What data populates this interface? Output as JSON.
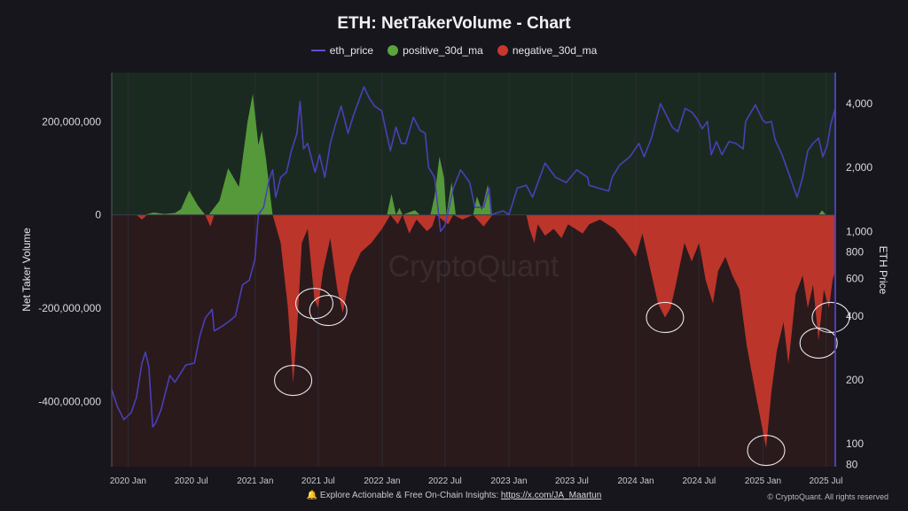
{
  "chart_data": {
    "type": "area",
    "title": "ETH: NetTakerVolume - Chart",
    "ylabel_left": "Net Taker Volume",
    "ylabel_right": "ETH Price",
    "watermark": "CryptoQuant",
    "x_ticks": [
      "2020 Jan",
      "2020 Jul",
      "2021 Jan",
      "2021 Jul",
      "2022 Jan",
      "2022 Jul",
      "2023 Jan",
      "2023 Jul",
      "2024 Jan",
      "2024 Jul",
      "2025 Jan",
      "2025 Jul"
    ],
    "x_range": [
      "2019-11-15",
      "2025-07-28"
    ],
    "left_axis": {
      "ylim": [
        -540000000,
        305000000
      ],
      "ticks": [
        200000000,
        0,
        -200000000,
        -400000000
      ],
      "tick_labels": [
        "200,000,000",
        "0",
        "-200,000,000",
        "-400,000,000"
      ]
    },
    "right_axis": {
      "scale": "log",
      "ylim": [
        78,
        5600
      ],
      "ticks": [
        4000,
        2000,
        1000,
        800,
        600,
        400,
        200,
        100,
        80
      ],
      "tick_labels": [
        "4,000",
        "2,000",
        "1,000",
        "800",
        "600",
        "400",
        "200",
        "100",
        "80"
      ]
    },
    "colors": {
      "eth_price": "#4a3fb8",
      "positive": "#5aa33d",
      "negative": "#c8372d",
      "bg_positive": "#1b2a20",
      "bg_negative": "#2a1a1c"
    },
    "series": [
      {
        "name": "positive_30d_ma",
        "points": [
          [
            "2019-11-15",
            0
          ],
          [
            "2020-02-15",
            0
          ],
          [
            "2020-03-15",
            5000000
          ],
          [
            "2020-04-15",
            2000000
          ],
          [
            "2020-05-15",
            4000000
          ],
          [
            "2020-06-01",
            12000000
          ],
          [
            "2020-06-25",
            52000000
          ],
          [
            "2020-07-20",
            20000000
          ],
          [
            "2020-08-10",
            0
          ],
          [
            "2020-08-20",
            0
          ],
          [
            "2020-09-20",
            30000000
          ],
          [
            "2020-10-15",
            100000000
          ],
          [
            "2020-11-15",
            60000000
          ],
          [
            "2020-12-10",
            200000000
          ],
          [
            "2020-12-25",
            260000000
          ],
          [
            "2021-01-10",
            150000000
          ],
          [
            "2021-01-20",
            180000000
          ],
          [
            "2021-02-01",
            120000000
          ],
          [
            "2021-02-15",
            30000000
          ],
          [
            "2021-02-20",
            0
          ],
          [
            "2022-01-15",
            0
          ],
          [
            "2022-01-28",
            45000000
          ],
          [
            "2022-02-10",
            0
          ],
          [
            "2022-02-20",
            15000000
          ],
          [
            "2022-03-01",
            0
          ],
          [
            "2022-04-05",
            10000000
          ],
          [
            "2022-04-20",
            0
          ],
          [
            "2022-05-20",
            0
          ],
          [
            "2022-06-01",
            40000000
          ],
          [
            "2022-06-15",
            125000000
          ],
          [
            "2022-06-28",
            80000000
          ],
          [
            "2022-07-05",
            0
          ],
          [
            "2022-07-20",
            70000000
          ],
          [
            "2022-08-01",
            0
          ],
          [
            "2022-09-20",
            0
          ],
          [
            "2022-10-01",
            40000000
          ],
          [
            "2022-10-15",
            10000000
          ],
          [
            "2022-11-01",
            65000000
          ],
          [
            "2022-11-10",
            0
          ],
          [
            "2025-06-10",
            0
          ],
          [
            "2025-06-20",
            10000000
          ],
          [
            "2025-07-01",
            0
          ],
          [
            "2025-07-28",
            0
          ]
        ]
      },
      {
        "name": "negative_30d_ma",
        "points": [
          [
            "2019-11-15",
            0
          ],
          [
            "2020-01-25",
            0
          ],
          [
            "2020-02-10",
            -10000000
          ],
          [
            "2020-02-25",
            0
          ],
          [
            "2020-08-10",
            0
          ],
          [
            "2020-08-25",
            -25000000
          ],
          [
            "2020-09-05",
            0
          ],
          [
            "2021-02-20",
            0
          ],
          [
            "2021-03-15",
            -60000000
          ],
          [
            "2021-04-05",
            -200000000
          ],
          [
            "2021-04-20",
            -360000000
          ],
          [
            "2021-05-01",
            -250000000
          ],
          [
            "2021-05-15",
            -60000000
          ],
          [
            "2021-06-01",
            -30000000
          ],
          [
            "2021-06-20",
            -180000000
          ],
          [
            "2021-07-01",
            -200000000
          ],
          [
            "2021-07-15",
            -120000000
          ],
          [
            "2021-08-05",
            -50000000
          ],
          [
            "2021-08-25",
            -160000000
          ],
          [
            "2021-09-10",
            -210000000
          ],
          [
            "2021-10-01",
            -130000000
          ],
          [
            "2021-11-01",
            -80000000
          ],
          [
            "2021-12-01",
            -60000000
          ],
          [
            "2022-01-01",
            -30000000
          ],
          [
            "2022-01-25",
            0
          ],
          [
            "2022-02-15",
            -20000000
          ],
          [
            "2022-03-01",
            0
          ],
          [
            "2022-03-20",
            -40000000
          ],
          [
            "2022-04-10",
            -10000000
          ],
          [
            "2022-05-10",
            -35000000
          ],
          [
            "2022-05-25",
            -25000000
          ],
          [
            "2022-06-05",
            0
          ],
          [
            "2022-07-10",
            -20000000
          ],
          [
            "2022-07-25",
            0
          ],
          [
            "2022-08-20",
            -10000000
          ],
          [
            "2022-09-20",
            0
          ],
          [
            "2022-10-20",
            -25000000
          ],
          [
            "2022-11-15",
            0
          ],
          [
            "2023-02-20",
            0
          ],
          [
            "2023-03-01",
            -30000000
          ],
          [
            "2023-03-15",
            -60000000
          ],
          [
            "2023-03-25",
            -20000000
          ],
          [
            "2023-04-15",
            -45000000
          ],
          [
            "2023-05-10",
            -30000000
          ],
          [
            "2023-06-01",
            -50000000
          ],
          [
            "2023-06-20",
            -20000000
          ],
          [
            "2023-08-01",
            -40000000
          ],
          [
            "2023-08-20",
            -20000000
          ],
          [
            "2023-09-20",
            -10000000
          ],
          [
            "2023-11-01",
            -30000000
          ],
          [
            "2023-12-05",
            -60000000
          ],
          [
            "2024-01-01",
            -90000000
          ],
          [
            "2024-01-20",
            -40000000
          ],
          [
            "2024-02-10",
            -110000000
          ],
          [
            "2024-03-05",
            -190000000
          ],
          [
            "2024-03-25",
            -220000000
          ],
          [
            "2024-04-10",
            -200000000
          ],
          [
            "2024-04-25",
            -150000000
          ],
          [
            "2024-05-20",
            -60000000
          ],
          [
            "2024-06-10",
            -100000000
          ],
          [
            "2024-07-01",
            -60000000
          ],
          [
            "2024-07-20",
            -140000000
          ],
          [
            "2024-08-10",
            -190000000
          ],
          [
            "2024-08-25",
            -120000000
          ],
          [
            "2024-09-15",
            -90000000
          ],
          [
            "2024-10-05",
            -130000000
          ],
          [
            "2024-10-25",
            -160000000
          ],
          [
            "2024-11-15",
            -280000000
          ],
          [
            "2024-12-15",
            -400000000
          ],
          [
            "2025-01-10",
            -500000000
          ],
          [
            "2025-01-25",
            -380000000
          ],
          [
            "2025-02-10",
            -290000000
          ],
          [
            "2025-03-01",
            -230000000
          ],
          [
            "2025-03-15",
            -320000000
          ],
          [
            "2025-03-25",
            -250000000
          ],
          [
            "2025-04-05",
            -170000000
          ],
          [
            "2025-04-25",
            -130000000
          ],
          [
            "2025-05-10",
            -200000000
          ],
          [
            "2025-05-25",
            -150000000
          ],
          [
            "2025-06-10",
            -270000000
          ],
          [
            "2025-06-25",
            -160000000
          ],
          [
            "2025-07-10",
            -200000000
          ],
          [
            "2025-07-20",
            -140000000
          ],
          [
            "2025-07-28",
            -120000000
          ]
        ]
      },
      {
        "name": "eth_price",
        "axis": "right",
        "points": [
          [
            "2019-11-15",
            180
          ],
          [
            "2019-12-01",
            150
          ],
          [
            "2019-12-20",
            130
          ],
          [
            "2020-01-10",
            140
          ],
          [
            "2020-01-25",
            165
          ],
          [
            "2020-02-10",
            240
          ],
          [
            "2020-02-20",
            270
          ],
          [
            "2020-03-01",
            230
          ],
          [
            "2020-03-12",
            120
          ],
          [
            "2020-03-20",
            125
          ],
          [
            "2020-04-05",
            145
          ],
          [
            "2020-04-30",
            210
          ],
          [
            "2020-05-15",
            195
          ],
          [
            "2020-06-15",
            235
          ],
          [
            "2020-07-10",
            240
          ],
          [
            "2020-07-25",
            320
          ],
          [
            "2020-08-10",
            390
          ],
          [
            "2020-08-30",
            430
          ],
          [
            "2020-09-05",
            340
          ],
          [
            "2020-09-30",
            360
          ],
          [
            "2020-10-20",
            380
          ],
          [
            "2020-11-05",
            400
          ],
          [
            "2020-11-25",
            560
          ],
          [
            "2020-12-15",
            590
          ],
          [
            "2020-12-31",
            740
          ],
          [
            "2021-01-10",
            1200
          ],
          [
            "2021-01-25",
            1300
          ],
          [
            "2021-02-10",
            1750
          ],
          [
            "2021-02-20",
            1950
          ],
          [
            "2021-03-01",
            1450
          ],
          [
            "2021-03-15",
            1800
          ],
          [
            "2021-04-01",
            1900
          ],
          [
            "2021-04-15",
            2400
          ],
          [
            "2021-05-01",
            2900
          ],
          [
            "2021-05-10",
            4100
          ],
          [
            "2021-05-20",
            2450
          ],
          [
            "2021-06-01",
            2600
          ],
          [
            "2021-06-22",
            1900
          ],
          [
            "2021-07-05",
            2300
          ],
          [
            "2021-07-20",
            1800
          ],
          [
            "2021-08-05",
            2600
          ],
          [
            "2021-08-20",
            3200
          ],
          [
            "2021-09-05",
            3900
          ],
          [
            "2021-09-25",
            2900
          ],
          [
            "2021-10-10",
            3500
          ],
          [
            "2021-10-30",
            4300
          ],
          [
            "2021-11-10",
            4800
          ],
          [
            "2021-11-25",
            4250
          ],
          [
            "2021-12-10",
            3900
          ],
          [
            "2021-12-31",
            3700
          ],
          [
            "2022-01-10",
            3100
          ],
          [
            "2022-01-25",
            2400
          ],
          [
            "2022-02-10",
            3100
          ],
          [
            "2022-02-25",
            2600
          ],
          [
            "2022-03-10",
            2600
          ],
          [
            "2022-04-01",
            3450
          ],
          [
            "2022-04-20",
            3000
          ],
          [
            "2022-05-05",
            2900
          ],
          [
            "2022-05-15",
            2000
          ],
          [
            "2022-06-01",
            1800
          ],
          [
            "2022-06-18",
            1000
          ],
          [
            "2022-07-01",
            1070
          ],
          [
            "2022-07-25",
            1600
          ],
          [
            "2022-08-15",
            1950
          ],
          [
            "2022-09-10",
            1700
          ],
          [
            "2022-09-25",
            1300
          ],
          [
            "2022-10-20",
            1300
          ],
          [
            "2022-11-05",
            1600
          ],
          [
            "2022-11-12",
            1200
          ],
          [
            "2022-12-15",
            1250
          ],
          [
            "2023-01-01",
            1200
          ],
          [
            "2023-01-25",
            1600
          ],
          [
            "2023-02-20",
            1650
          ],
          [
            "2023-03-10",
            1450
          ],
          [
            "2023-04-15",
            2100
          ],
          [
            "2023-05-15",
            1800
          ],
          [
            "2023-06-15",
            1700
          ],
          [
            "2023-07-15",
            1950
          ],
          [
            "2023-08-15",
            1800
          ],
          [
            "2023-08-20",
            1650
          ],
          [
            "2023-09-15",
            1600
          ],
          [
            "2023-10-15",
            1550
          ],
          [
            "2023-10-25",
            1800
          ],
          [
            "2023-11-15",
            2050
          ],
          [
            "2023-12-15",
            2250
          ],
          [
            "2024-01-10",
            2600
          ],
          [
            "2024-01-25",
            2250
          ],
          [
            "2024-02-15",
            2750
          ],
          [
            "2024-03-12",
            4000
          ],
          [
            "2024-03-30",
            3500
          ],
          [
            "2024-04-15",
            3100
          ],
          [
            "2024-05-01",
            2950
          ],
          [
            "2024-05-22",
            3800
          ],
          [
            "2024-06-10",
            3650
          ],
          [
            "2024-06-25",
            3400
          ],
          [
            "2024-07-10",
            3050
          ],
          [
            "2024-07-25",
            3300
          ],
          [
            "2024-08-05",
            2300
          ],
          [
            "2024-08-20",
            2650
          ],
          [
            "2024-09-05",
            2300
          ],
          [
            "2024-09-25",
            2650
          ],
          [
            "2024-10-15",
            2600
          ],
          [
            "2024-11-05",
            2450
          ],
          [
            "2024-11-12",
            3300
          ],
          [
            "2024-12-10",
            3950
          ],
          [
            "2024-12-31",
            3350
          ],
          [
            "2025-01-10",
            3250
          ],
          [
            "2025-01-25",
            3300
          ],
          [
            "2025-02-05",
            2700
          ],
          [
            "2025-02-25",
            2300
          ],
          [
            "2025-03-15",
            1900
          ],
          [
            "2025-04-09",
            1450
          ],
          [
            "2025-04-25",
            1800
          ],
          [
            "2025-05-10",
            2400
          ],
          [
            "2025-05-25",
            2600
          ],
          [
            "2025-06-10",
            2750
          ],
          [
            "2025-06-22",
            2250
          ],
          [
            "2025-07-05",
            2550
          ],
          [
            "2025-07-15",
            3200
          ],
          [
            "2025-07-28",
            3800
          ]
        ]
      }
    ],
    "annotations": [
      {
        "type": "circle",
        "x": "2021-04-20",
        "y": -355000000
      },
      {
        "type": "circle",
        "x": "2021-06-20",
        "y": -190000000
      },
      {
        "type": "circle",
        "x": "2021-07-30",
        "y": -205000000
      },
      {
        "type": "circle",
        "x": "2024-03-25",
        "y": -220000000
      },
      {
        "type": "circle",
        "x": "2025-01-10",
        "y": -505000000
      },
      {
        "type": "circle",
        "x": "2025-06-10",
        "y": -275000000
      },
      {
        "type": "circle",
        "x": "2025-07-15",
        "y": -220000000
      }
    ]
  },
  "legend": {
    "eth_price": "eth_price",
    "positive": "positive_30d_ma",
    "negative": "negative_30d_ma"
  },
  "footer": {
    "bell_icon": "🔔",
    "text": "Explore Actionable & Free On-Chain Insights:",
    "link": "https://x.com/JA_Maartun",
    "copyright": "© CryptoQuant. All rights reserved"
  }
}
